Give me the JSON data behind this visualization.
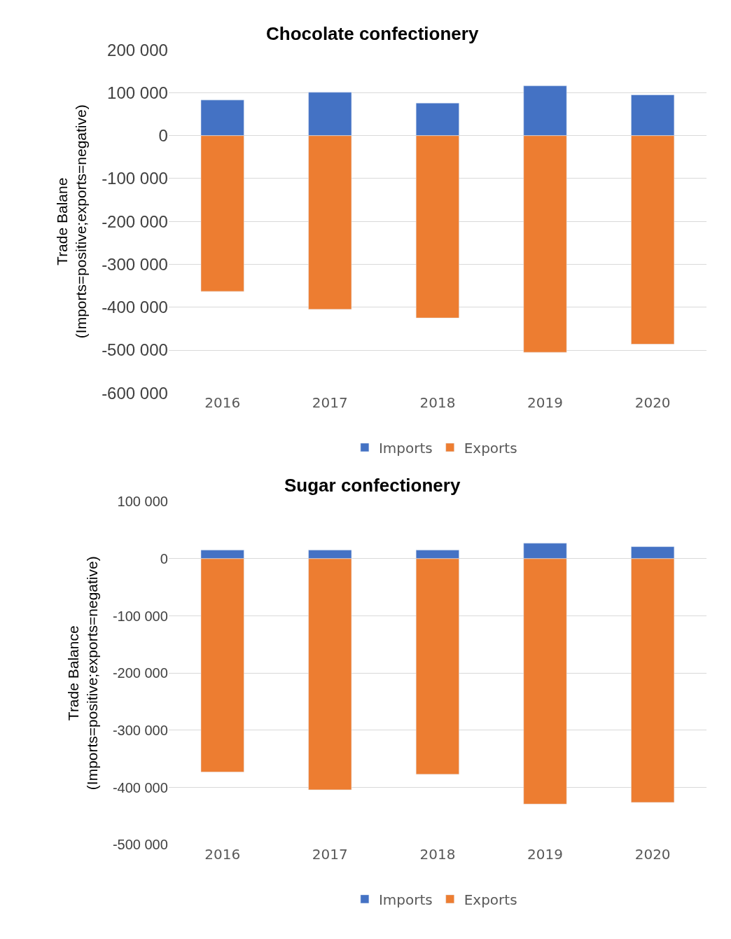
{
  "chart_data": [
    {
      "type": "bar",
      "title": "Chocolate confectionery",
      "ylabel": "Trade Balane\n(Imports=positive;exports=negative)",
      "categories": [
        "2016",
        "2017",
        "2018",
        "2019",
        "2020"
      ],
      "stacked": true,
      "grid": "y",
      "legend": "bottom",
      "series": [
        {
          "name": "Imports",
          "color": "#4472c4",
          "values": [
            83000,
            101000,
            76000,
            116000,
            95000
          ]
        },
        {
          "name": "Exports",
          "color": "#ed7d31",
          "values": [
            -363000,
            -405000,
            -425000,
            -505000,
            -486000
          ]
        }
      ],
      "ylim": [
        -600000,
        200000
      ],
      "yticks": [
        {
          "value": 200000,
          "label": "200 000"
        },
        {
          "value": 100000,
          "label": "100 000"
        },
        0,
        {
          "value": -100000,
          "label": "-100 000"
        },
        {
          "value": -200000,
          "label": "-200 000"
        },
        {
          "value": -300000,
          "label": "-300 000"
        },
        {
          "value": -400000,
          "label": "-400 000"
        },
        {
          "value": -500000,
          "label": "-500 000"
        },
        {
          "value": -600000,
          "label": "-600 000"
        }
      ]
    },
    {
      "type": "bar",
      "title": "Sugar confectionery",
      "ylabel": "Trade Balance\n(Imports=positive;exports=negative)",
      "categories": [
        "2016",
        "2017",
        "2018",
        "2019",
        "2020"
      ],
      "stacked": true,
      "grid": "y",
      "legend": "bottom",
      "series": [
        {
          "name": "Imports",
          "color": "#4472c4",
          "values": [
            15000,
            15000,
            15000,
            27000,
            21000
          ]
        },
        {
          "name": "Exports",
          "color": "#ed7d31",
          "values": [
            -373000,
            -404000,
            -377000,
            -429000,
            -426000
          ]
        }
      ],
      "ylim": [
        -500000,
        100000
      ],
      "yticks": [
        {
          "value": 100000,
          "label": "100 000"
        },
        0,
        {
          "value": -100000,
          "label": "-100 000"
        },
        {
          "value": -200000,
          "label": "-200 000"
        },
        {
          "value": -300000,
          "label": "-300 000"
        },
        {
          "value": -400000,
          "label": "-400 000"
        },
        {
          "value": -500000,
          "label": "-500 000"
        }
      ]
    }
  ]
}
